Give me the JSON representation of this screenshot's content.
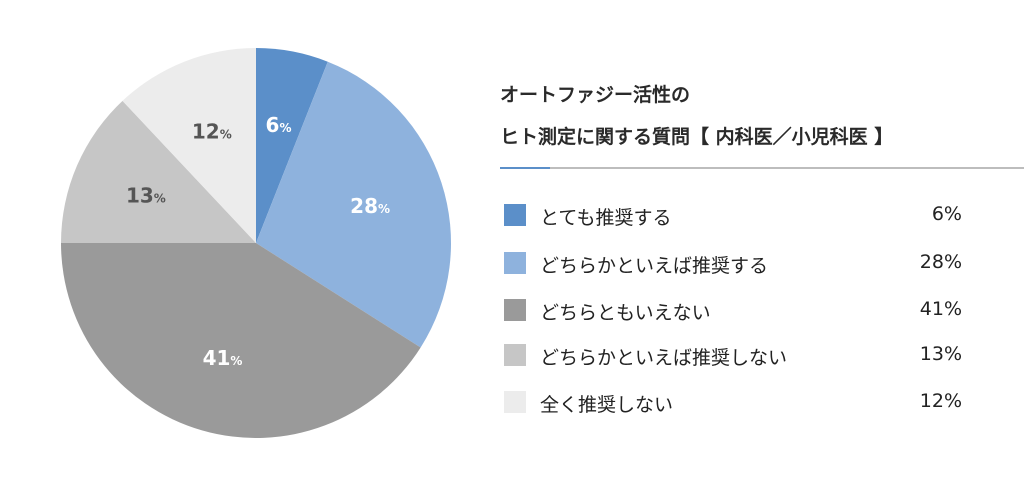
{
  "title": {
    "line1": "オートファジー活性の",
    "line2": "ヒト測定に関する質問【 内科医／小児科医 】"
  },
  "chart_data": {
    "type": "pie",
    "unit": "%",
    "categories": [
      "とても推奨する",
      "どちらかといえば推奨する",
      "どちらともいえない",
      "どちらかといえば推奨しない",
      "全く推奨しない"
    ],
    "values": [
      6,
      28,
      41,
      13,
      12
    ],
    "slice_labels": [
      "6",
      "28",
      "41",
      "13",
      "12"
    ],
    "legend_values": [
      "6%",
      "28%",
      "41%",
      "13%",
      "12%"
    ],
    "colors": [
      "#5b8fc9",
      "#8eb2dd",
      "#9a9a9a",
      "#c6c6c6",
      "#ececec"
    ],
    "label_colors": [
      "#ffffff",
      "#ffffff",
      "#ffffff",
      "#555555",
      "#555555"
    ],
    "start": "top",
    "direction": "clockwise",
    "legend_position": "right"
  }
}
